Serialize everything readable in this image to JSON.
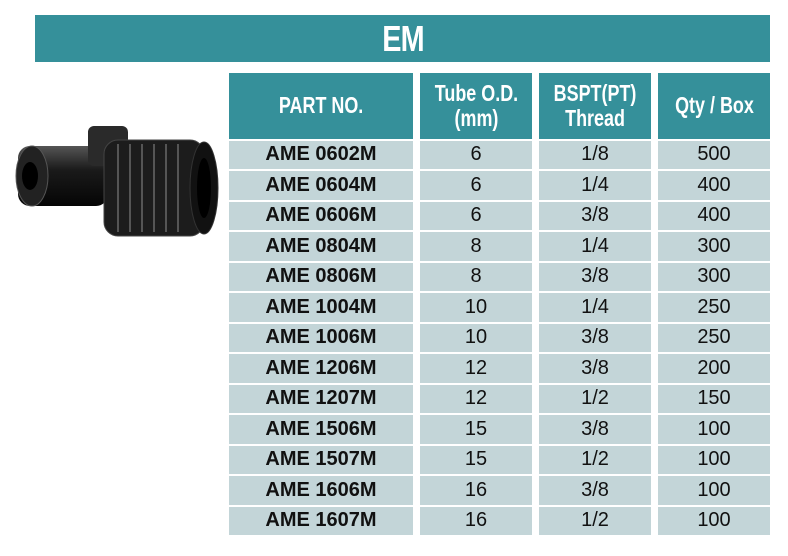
{
  "title": "EM",
  "headers": [
    "PART NO.",
    "Tube O.D.\n(mm)",
    "BSPT(PT)\nThread",
    "Qty / Box"
  ],
  "rows": [
    [
      "AME 0602M",
      "6",
      "1/8",
      "500"
    ],
    [
      "AME 0604M",
      "6",
      "1/4",
      "400"
    ],
    [
      "AME 0606M",
      "6",
      "3/8",
      "400"
    ],
    [
      "AME 0804M",
      "8",
      "1/4",
      "300"
    ],
    [
      "AME 0806M",
      "8",
      "3/8",
      "300"
    ],
    [
      "AME 1004M",
      "10",
      "1/4",
      "250"
    ],
    [
      "AME 1006M",
      "10",
      "3/8",
      "250"
    ],
    [
      "AME 1206M",
      "12",
      "3/8",
      "200"
    ],
    [
      "AME 1207M",
      "12",
      "1/2",
      "150"
    ],
    [
      "AME 1506M",
      "15",
      "3/8",
      "100"
    ],
    [
      "AME 1507M",
      "15",
      "1/2",
      "100"
    ],
    [
      "AME 1606M",
      "16",
      "3/8",
      "100"
    ],
    [
      "AME 1607M",
      "16",
      "1/2",
      "100"
    ]
  ],
  "colors": {
    "header": "#35909a",
    "row": "#c3d5d8"
  }
}
